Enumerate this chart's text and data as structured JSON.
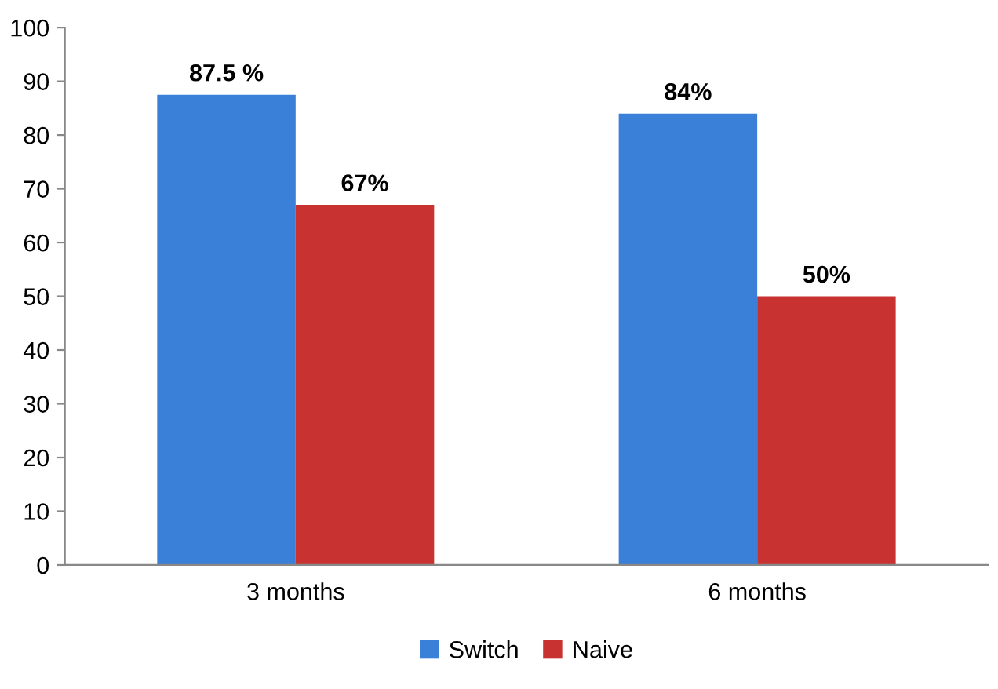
{
  "chart_data": {
    "type": "bar",
    "categories": [
      "3 months",
      "6 months"
    ],
    "series": [
      {
        "name": "Switch",
        "color": "#3a7fd8",
        "values": [
          87.5,
          84
        ],
        "value_labels": [
          "87.5 %",
          "84%"
        ]
      },
      {
        "name": "Naive",
        "color": "#c83230",
        "values": [
          67,
          50
        ],
        "value_labels": [
          "67%",
          "50%"
        ]
      }
    ],
    "ylim": [
      0,
      100
    ],
    "yticks": [
      0,
      10,
      20,
      30,
      40,
      50,
      60,
      70,
      80,
      90,
      100
    ],
    "grid": false,
    "legend": "bottom"
  }
}
